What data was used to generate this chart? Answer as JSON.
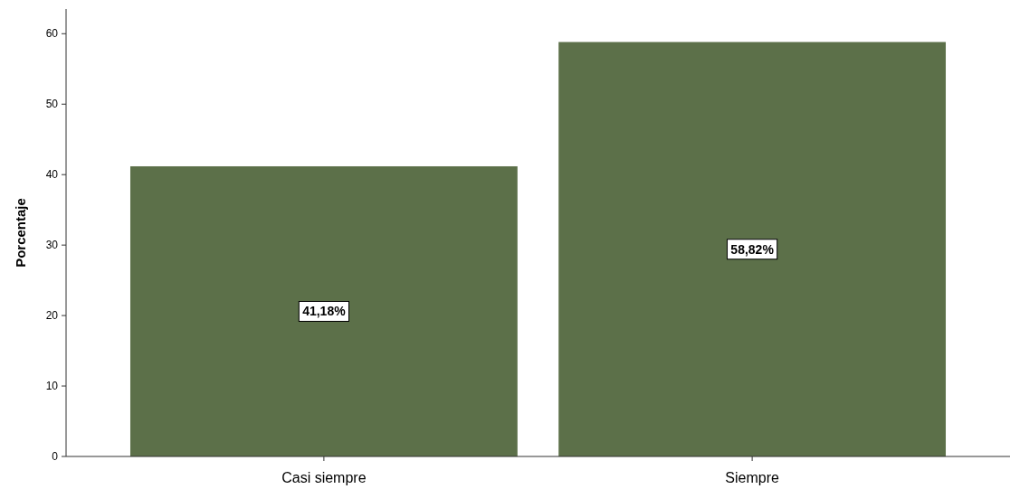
{
  "chart_data": {
    "type": "bar",
    "ylabel": "Porcentaje",
    "categories": [
      "Casi siempre",
      "Siempre"
    ],
    "values": [
      41.18,
      58.82
    ],
    "value_labels": [
      "41,18%",
      "58,82%"
    ],
    "color": "#5c7049",
    "ylim": [
      0,
      63.5
    ],
    "yticks": [
      0,
      10,
      20,
      30,
      40,
      50,
      60
    ],
    "grid": false
  }
}
